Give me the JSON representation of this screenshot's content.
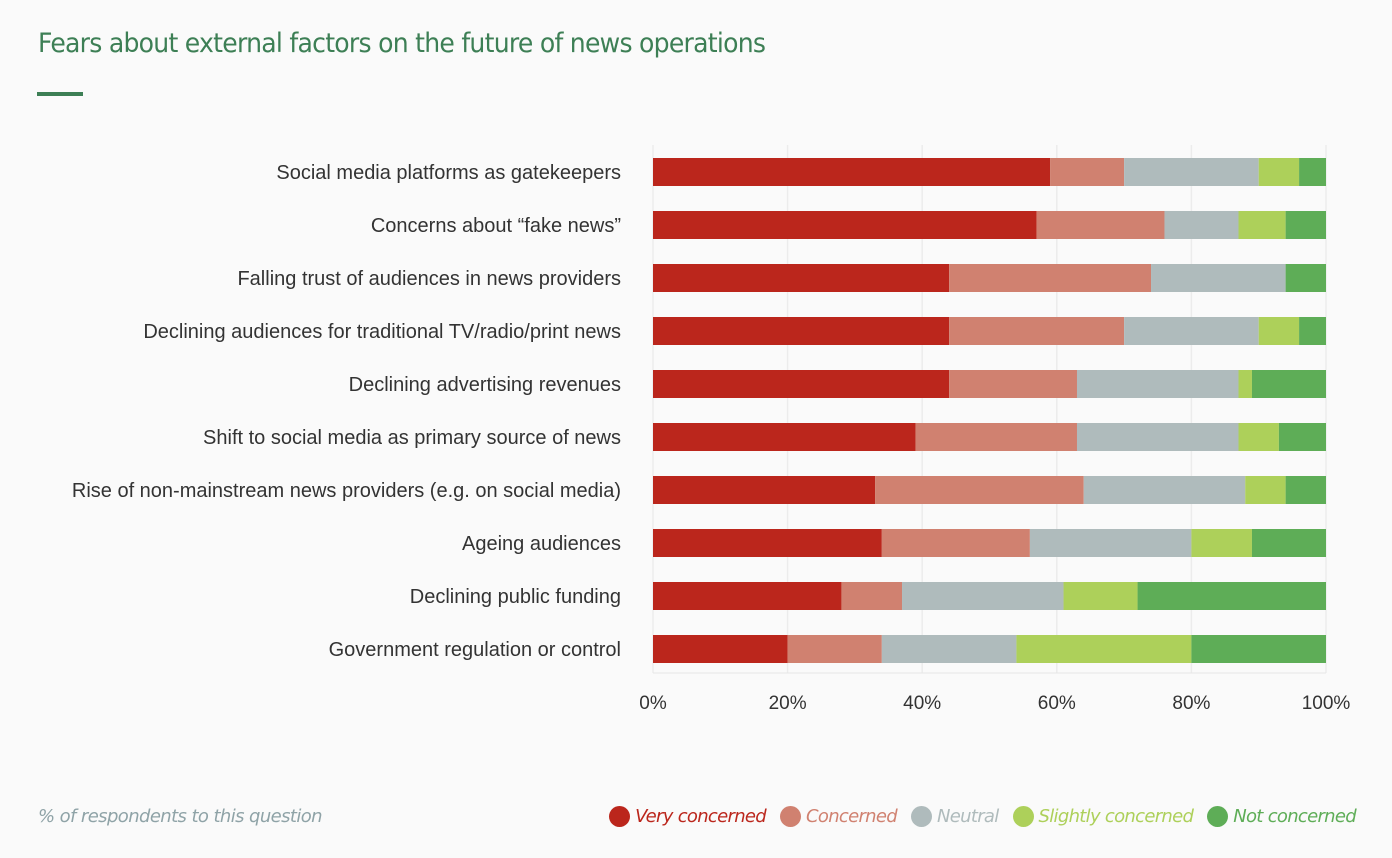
{
  "header": {
    "title": "Fears about external factors on the future of news operations"
  },
  "footnote": "% of respondents to this question",
  "chart_data": {
    "type": "bar",
    "orientation": "horizontal",
    "stacked": true,
    "title": "Fears about external factors on the future of news operations",
    "xlabel": "% of respondents to this question",
    "ylabel": "",
    "xlim": [
      0,
      100
    ],
    "x_ticks": [
      "0%",
      "20%",
      "40%",
      "60%",
      "80%",
      "100%"
    ],
    "grid": true,
    "legend_position": "bottom-right",
    "categories": [
      "Social media platforms as gatekeepers",
      "Concerns about “fake news”",
      "Falling trust of audiences in news providers",
      "Declining audiences for traditional TV/radio/print news",
      "Declining advertising revenues",
      "Shift to social media as primary source of news",
      "Rise of non-mainstream news providers (e.g. on social media)",
      "Ageing audiences",
      "Declining public funding",
      "Government regulation or control"
    ],
    "series": [
      {
        "name": "Very concerned",
        "color": "#bb261c",
        "values": [
          59,
          57,
          44,
          44,
          44,
          39,
          33,
          34,
          28,
          20
        ]
      },
      {
        "name": "Concerned",
        "color": "#d08170",
        "values": [
          11,
          19,
          30,
          26,
          19,
          24,
          31,
          22,
          9,
          14
        ]
      },
      {
        "name": "Neutral",
        "color": "#afbbbc",
        "values": [
          20,
          11,
          20,
          20,
          24,
          24,
          24,
          24,
          24,
          20
        ]
      },
      {
        "name": "Slightly concerned",
        "color": "#add05a",
        "values": [
          6,
          7,
          0,
          6,
          2,
          6,
          6,
          9,
          11,
          26
        ]
      },
      {
        "name": "Not concerned",
        "color": "#5ead57",
        "values": [
          4,
          6,
          6,
          4,
          11,
          7,
          6,
          11,
          28,
          20
        ]
      }
    ]
  }
}
